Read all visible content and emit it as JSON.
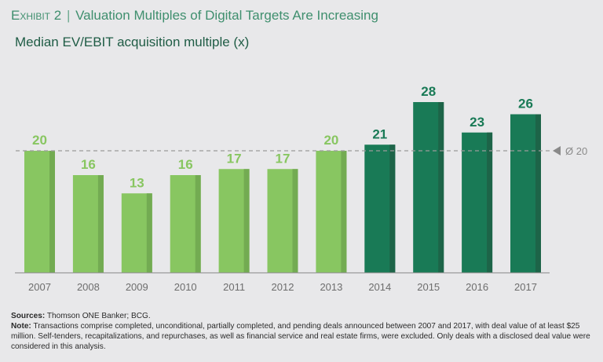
{
  "header": {
    "exhibit_label": "Exhibit 2",
    "separator": "|",
    "title": "Valuation Multiples of Digital Targets Are Increasing",
    "subtitle": "Median EV/EBIT acquisition multiple (x)"
  },
  "chart_data": {
    "type": "bar",
    "title": "Valuation Multiples of Digital Targets Are Increasing",
    "subtitle": "Median EV/EBIT acquisition multiple (x)",
    "xlabel": "",
    "ylabel": "Median EV/EBIT acquisition multiple (x)",
    "categories": [
      "2007",
      "2008",
      "2009",
      "2010",
      "2011",
      "2012",
      "2013",
      "2014",
      "2015",
      "2016",
      "2017"
    ],
    "values": [
      20,
      16,
      13,
      16,
      17,
      17,
      20,
      21,
      28,
      23,
      26
    ],
    "data_labels": [
      "20",
      "16",
      "13",
      "16",
      "17",
      "17",
      "20",
      "21",
      "28",
      "23",
      "26"
    ],
    "highlight_from": "2014",
    "ylim": [
      0,
      30
    ],
    "grid": false,
    "reference_line": {
      "value": 20,
      "label": "Ø 20",
      "style": "dashed"
    },
    "colors": {
      "early": "#88c661",
      "early_shade": "#73ab52",
      "recent": "#197a56",
      "recent_shade": "#1d6448",
      "reference": "#9b9b9b",
      "axis": "#9a9a9a",
      "tick_label": "#6d6d6d"
    }
  },
  "footer": {
    "sources_label": "Sources:",
    "sources_text": " Thomson ONE Banker; BCG.",
    "note_label": "Note:",
    "note_text": " Transactions comprise completed, unconditional, partially completed, and pending deals announced between 2007 and 2017, with deal value of at least $25 million. Self-tenders, recapitalizations, and repurchases, as well as financial service and real estate firms, were excluded. Only deals with a disclosed deal value were considered in this analysis."
  }
}
